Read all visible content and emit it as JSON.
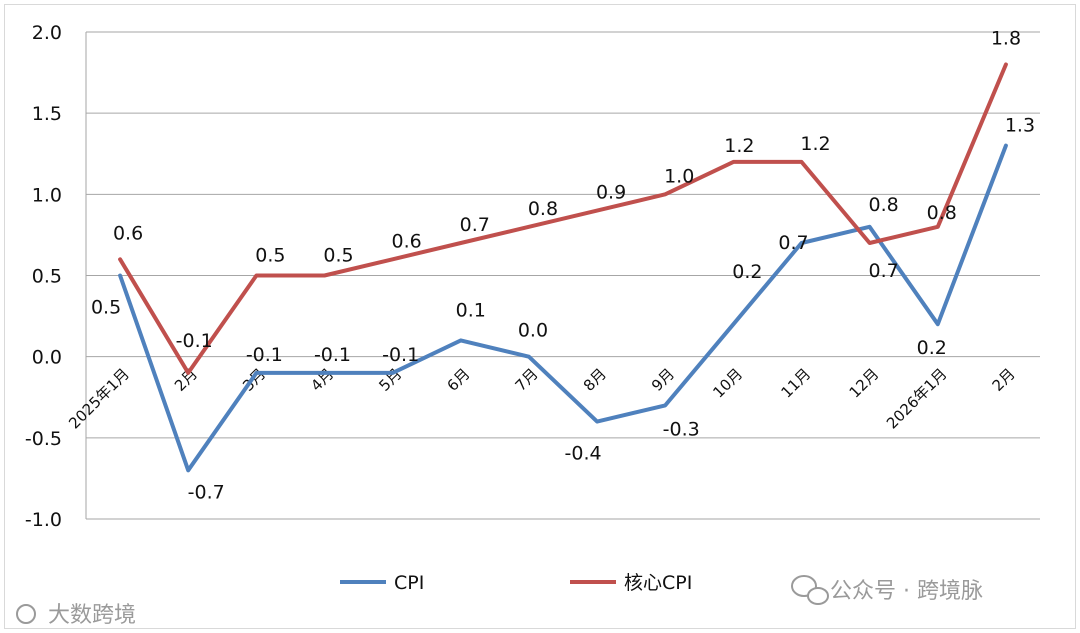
{
  "chart_data": {
    "type": "line",
    "categories": [
      "2025年1月",
      "2月",
      "3月",
      "4月",
      "5月",
      "6月",
      "7月",
      "8月",
      "9月",
      "10月",
      "11月",
      "12月",
      "2026年1月",
      "2月"
    ],
    "series": [
      {
        "name": "CPI",
        "color": "#4f81bd",
        "values": [
          0.5,
          -0.7,
          -0.1,
          -0.1,
          -0.1,
          0.1,
          0.0,
          -0.4,
          -0.3,
          0.2,
          0.7,
          0.8,
          0.2,
          1.3
        ],
        "labels": [
          "0.5",
          "-0.7",
          "-0.1",
          "-0.1",
          "-0.1",
          "0.1",
          "0.0",
          "-0.4",
          "-0.3",
          "0.2",
          "0.7",
          "0.8",
          "0.2",
          "1.3"
        ]
      },
      {
        "name": "核心CPI",
        "color": "#c0504d",
        "values": [
          0.6,
          -0.1,
          0.5,
          0.5,
          0.6,
          0.7,
          0.8,
          0.9,
          1.0,
          1.2,
          1.2,
          0.7,
          0.8,
          1.8
        ],
        "labels": [
          "0.6",
          "-0.1",
          "0.5",
          "0.5",
          "0.6",
          "0.7",
          "0.8",
          "0.9",
          "1.0",
          "1.2",
          "1.2",
          "0.7",
          "0.8",
          "1.8"
        ]
      }
    ],
    "ylim": [
      -1.0,
      2.0
    ],
    "yticks": [
      "-1.0",
      "-0.5",
      "0.0",
      "0.5",
      "1.0",
      "1.5",
      "2.0"
    ],
    "grid": true,
    "legend": "bottom"
  },
  "watermarks": {
    "left": "大数跨境",
    "right": "公众号 · 跨境脉"
  }
}
